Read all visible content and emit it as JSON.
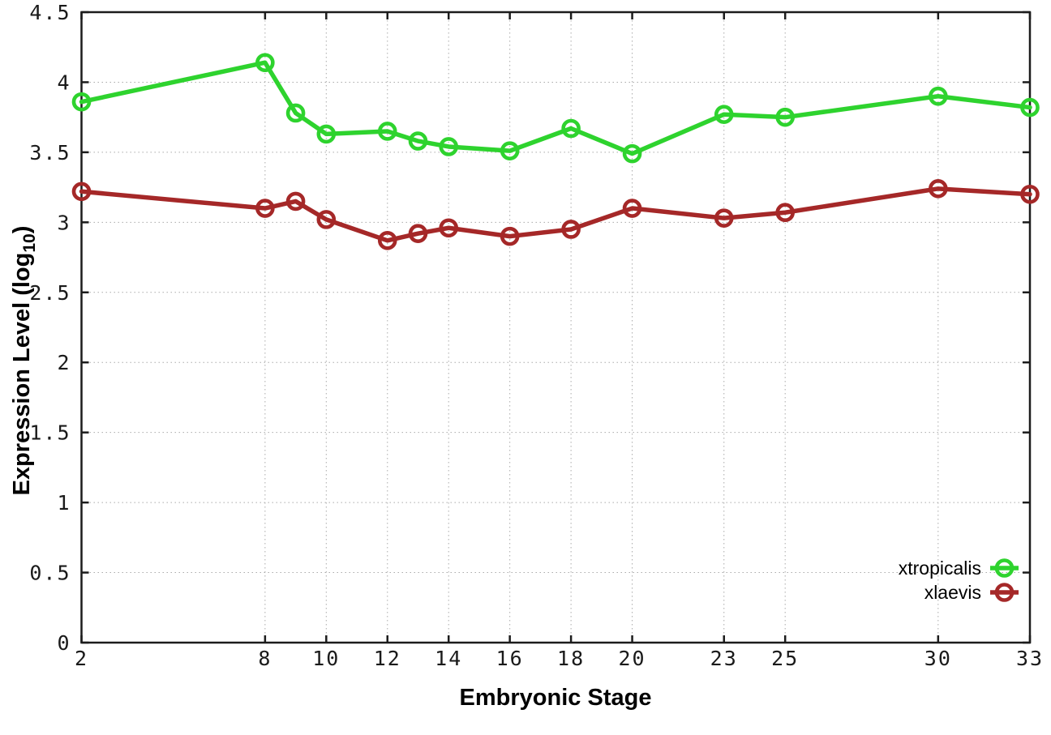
{
  "chart_data": {
    "type": "line",
    "title": "",
    "xlabel": "Embryonic Stage",
    "ylabel": "Expression Level (log10)",
    "ylabel_parts": [
      "Expression Level (log",
      "10",
      ")"
    ],
    "x": [
      2,
      8,
      9,
      10,
      12,
      13,
      14,
      16,
      18,
      20,
      23,
      25,
      30,
      33
    ],
    "series": [
      {
        "name": "xtropicalis",
        "color": "#2ed32e",
        "values": [
          3.86,
          4.14,
          3.78,
          3.63,
          3.65,
          3.58,
          3.54,
          3.51,
          3.67,
          3.49,
          3.77,
          3.75,
          3.9,
          3.82
        ]
      },
      {
        "name": "xlaevis",
        "color": "#a52828",
        "values": [
          3.22,
          3.1,
          3.15,
          3.02,
          2.87,
          2.92,
          2.96,
          2.9,
          2.95,
          3.1,
          3.03,
          3.07,
          3.24,
          3.2
        ]
      }
    ],
    "x_ticks": [
      2,
      8,
      10,
      12,
      14,
      16,
      18,
      20,
      23,
      25,
      30,
      33
    ],
    "x_tick_labels": [
      "2",
      "8",
      "10",
      "12",
      "14",
      "16",
      "18",
      "20",
      "23",
      "25",
      "30",
      "33"
    ],
    "y_ticks": [
      0,
      0.5,
      1,
      1.5,
      2,
      2.5,
      3,
      3.5,
      4,
      4.5
    ],
    "y_tick_labels": [
      "0",
      "0.5",
      "1",
      "1.5",
      "2",
      "2.5",
      "3",
      "3.5",
      "4",
      "4.5"
    ],
    "xlim": [
      2,
      33
    ],
    "ylim": [
      0,
      4.5
    ],
    "grid": true,
    "legend_position": "bottom-right",
    "marker": "open-circle",
    "colors": {
      "axis": "#1c1c1c",
      "grid": "#aaaaaa",
      "background": "#ffffff",
      "text": "#000000"
    }
  }
}
